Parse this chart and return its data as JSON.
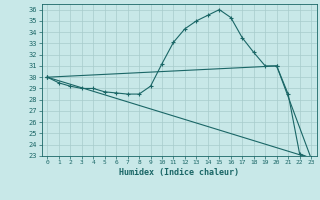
{
  "xlabel": "Humidex (Indice chaleur)",
  "bg_color": "#c8e8e8",
  "grid_color": "#a8cccc",
  "line_color": "#1a6666",
  "curve_x": [
    0,
    1,
    2,
    3,
    4,
    5,
    6,
    7,
    8,
    9,
    10,
    11,
    12,
    13,
    14,
    15,
    16,
    17,
    18,
    19,
    20,
    21,
    22,
    23
  ],
  "curve_y1": [
    30.0,
    29.5,
    29.2,
    29.0,
    29.0,
    28.7,
    28.6,
    28.5,
    28.5,
    29.2,
    31.2,
    33.1,
    34.3,
    35.0,
    35.5,
    36.0,
    35.3,
    33.5,
    32.2,
    31.0,
    31.0,
    28.5,
    23.2,
    22.8
  ],
  "line2_x": [
    0,
    20,
    23
  ],
  "line2_y": [
    30.0,
    31.0,
    22.8
  ],
  "line3_x": [
    0,
    23
  ],
  "line3_y": [
    30.0,
    22.8
  ],
  "ylim": [
    23,
    36.5
  ],
  "xlim": [
    -0.5,
    23.5
  ],
  "yticks": [
    23,
    24,
    25,
    26,
    27,
    28,
    29,
    30,
    31,
    32,
    33,
    34,
    35,
    36
  ],
  "xticks": [
    0,
    1,
    2,
    3,
    4,
    5,
    6,
    7,
    8,
    9,
    10,
    11,
    12,
    13,
    14,
    15,
    16,
    17,
    18,
    19,
    20,
    21,
    22,
    23
  ]
}
